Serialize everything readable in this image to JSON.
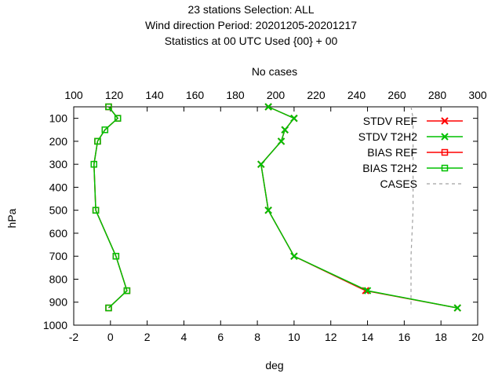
{
  "chart_data": {
    "type": "line",
    "title": [
      "23 stations Selection: ALL",
      "Wind direction  Period: 20201205-20201217",
      "Statistics at 00 UTC  Used {00} + 00"
    ],
    "xlabel": "deg",
    "ylabel": "hPa",
    "x2label": "No cases",
    "xlim": [
      -2,
      20
    ],
    "x2lim": [
      100,
      300
    ],
    "ylim": [
      1000,
      50
    ],
    "xticks": [
      "-2",
      "0",
      "2",
      "4",
      "6",
      "8",
      "10",
      "12",
      "14",
      "16",
      "18",
      "20"
    ],
    "x2ticks": [
      "100",
      "120",
      "140",
      "160",
      "180",
      "200",
      "220",
      "240",
      "260",
      "280",
      "300"
    ],
    "yticks": [
      "100",
      "200",
      "300",
      "400",
      "500",
      "600",
      "700",
      "800",
      "900",
      "1000"
    ],
    "legend_position": "top-right",
    "series": [
      {
        "name": "STDV REF",
        "color": "#ff0000",
        "marker": "x",
        "points": [
          [
            8.6,
            50
          ],
          [
            10.0,
            100
          ],
          [
            9.5,
            150
          ],
          [
            9.3,
            200
          ],
          [
            8.2,
            300
          ],
          [
            8.6,
            500
          ],
          [
            10.0,
            700
          ],
          [
            13.9,
            850
          ],
          [
            18.9,
            925
          ]
        ]
      },
      {
        "name": "STDV T2H2",
        "color": "#00c000",
        "marker": "x",
        "points": [
          [
            8.6,
            50
          ],
          [
            10.0,
            100
          ],
          [
            9.5,
            150
          ],
          [
            9.3,
            200
          ],
          [
            8.2,
            300
          ],
          [
            8.6,
            500
          ],
          [
            10.0,
            700
          ],
          [
            14.0,
            850
          ],
          [
            18.9,
            925
          ]
        ]
      },
      {
        "name": "BIAS REF",
        "color": "#ff0000",
        "marker": "square",
        "points": [
          [
            -0.1,
            50
          ],
          [
            0.4,
            100
          ],
          [
            -0.3,
            150
          ],
          [
            -0.7,
            200
          ],
          [
            -0.9,
            300
          ],
          [
            -0.8,
            500
          ],
          [
            0.3,
            700
          ],
          [
            0.9,
            850
          ],
          [
            -0.1,
            925
          ]
        ]
      },
      {
        "name": "BIAS T2H2",
        "color": "#00c000",
        "marker": "square",
        "points": [
          [
            -0.1,
            50
          ],
          [
            0.4,
            100
          ],
          [
            -0.3,
            150
          ],
          [
            -0.7,
            200
          ],
          [
            -0.9,
            300
          ],
          [
            -0.8,
            500
          ],
          [
            0.3,
            700
          ],
          [
            0.9,
            850
          ],
          [
            -0.1,
            925
          ]
        ]
      },
      {
        "name": "CASES",
        "color": "#a0a0a0",
        "marker": "none",
        "dashed": true,
        "axis": "x2",
        "points": [
          [
            267,
            50
          ],
          [
            268,
            100
          ],
          [
            268,
            150
          ],
          [
            268,
            200
          ],
          [
            268,
            300
          ],
          [
            268,
            400
          ],
          [
            268,
            500
          ],
          [
            267,
            700
          ],
          [
            267,
            850
          ],
          [
            267,
            925
          ]
        ]
      }
    ]
  }
}
